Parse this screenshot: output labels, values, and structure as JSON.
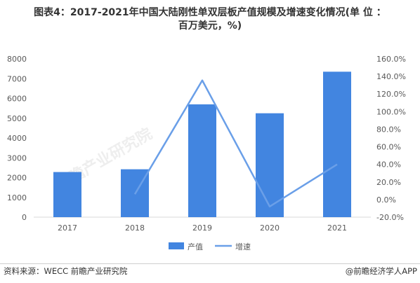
{
  "title": {
    "line1": "图表4：2017-2021年中国大陆刚性单双层板产值规模及增速变化情况(单  位  ：",
    "line2": "百万美元，%)"
  },
  "chart_data": {
    "type": "bar",
    "categories": [
      "2017",
      "2018",
      "2019",
      "2020",
      "2021"
    ],
    "series": [
      {
        "name": "产值",
        "kind": "bar",
        "axis": "left",
        "color": "#4285e0",
        "values": [
          2280,
          2420,
          5700,
          5250,
          7350
        ]
      },
      {
        "name": "增速",
        "kind": "line",
        "axis": "right",
        "color": "#6a9fe8",
        "values": [
          null,
          6.1,
          135.5,
          -7.9,
          40.0
        ]
      }
    ],
    "y_left": {
      "min": 0,
      "max": 8000,
      "ticks": [
        "0",
        "1000",
        "2000",
        "3000",
        "4000",
        "5000",
        "6000",
        "7000",
        "8000"
      ]
    },
    "y_right": {
      "min": -20,
      "max": 160,
      "ticks": [
        "-20.0%",
        "0.0%",
        "20.0%",
        "40.0%",
        "60.0%",
        "80.0%",
        "100.0%",
        "120.0%",
        "140.0%",
        "160.0%"
      ]
    },
    "legend_position": "bottom",
    "grid": false
  },
  "footer": {
    "source": "资料来源：WECC 前瞻产业研究院",
    "brand": "@前瞻经济学人APP"
  },
  "watermark": {
    "text": "前瞻产业研究院"
  }
}
